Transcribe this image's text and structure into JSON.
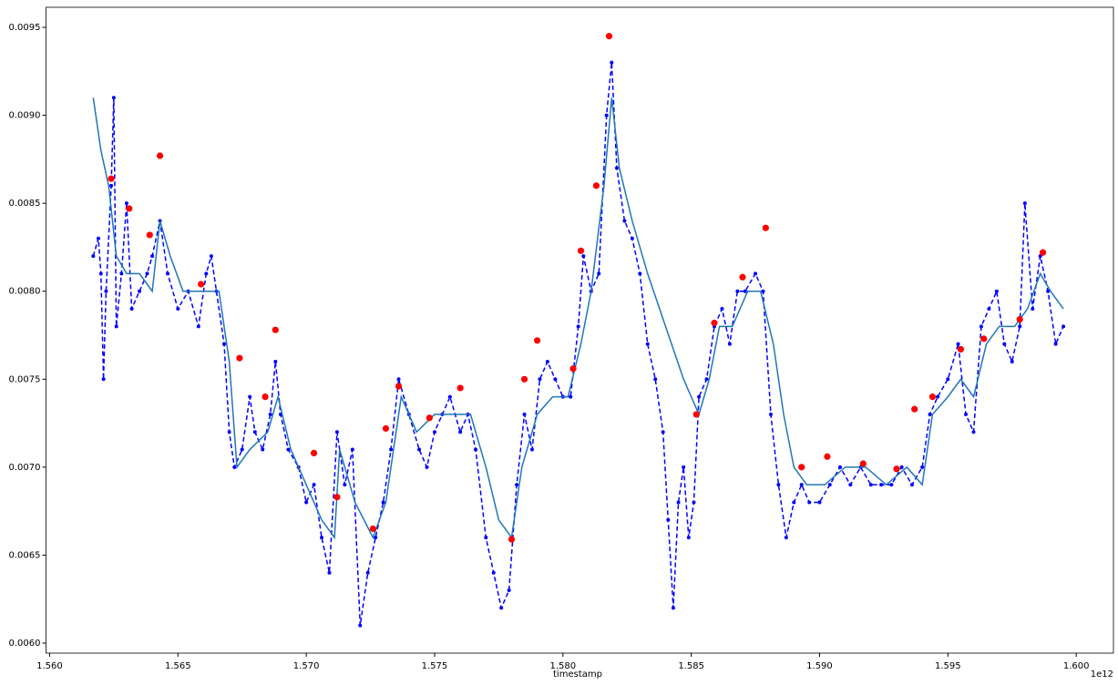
{
  "chart_data": {
    "type": "line",
    "x_label": "timestamp",
    "x_offset_label": "1e12",
    "xlim": [
      1.55986,
      1.60145
    ],
    "ylim": [
      0.005943,
      0.009614
    ],
    "xticks": [
      {
        "value": 1.56,
        "label": "1.560"
      },
      {
        "value": 1.565,
        "label": "1.565"
      },
      {
        "value": 1.57,
        "label": "1.570"
      },
      {
        "value": 1.575,
        "label": "1.575"
      },
      {
        "value": 1.58,
        "label": "1.580"
      },
      {
        "value": 1.585,
        "label": "1.585"
      },
      {
        "value": 1.59,
        "label": "1.590"
      },
      {
        "value": 1.595,
        "label": "1.595"
      },
      {
        "value": 1.6,
        "label": "1.600"
      }
    ],
    "yticks": [
      {
        "value": 0.006,
        "label": "0.0060"
      },
      0.0065,
      {
        "value": 0.007,
        "label": "0.0070"
      },
      0.0075,
      {
        "value": 0.008,
        "label": "0.0080"
      },
      0.0085,
      {
        "value": 0.009,
        "label": "0.0090"
      },
      0.0095
    ],
    "series": [
      {
        "color": "#0000ff",
        "line": "dashed",
        "marker": "dot",
        "x": [
          1.5617,
          1.5619,
          1.562,
          1.5621,
          1.5622,
          1.5624,
          1.5625,
          1.5626,
          1.5628,
          1.563,
          1.5632,
          1.5635,
          1.5638,
          1.564,
          1.5643,
          1.5646,
          1.565,
          1.5654,
          1.5658,
          1.5661,
          1.5663,
          1.5665,
          1.5668,
          1.567,
          1.5672,
          1.5675,
          1.5678,
          1.568,
          1.5683,
          1.5686,
          1.5688,
          1.569,
          1.5693,
          1.5697,
          1.57,
          1.5703,
          1.5706,
          1.5709,
          1.5712,
          1.5715,
          1.5718,
          1.5721,
          1.5724,
          1.5727,
          1.573,
          1.5733,
          1.5736,
          1.574,
          1.5744,
          1.5747,
          1.575,
          1.5753,
          1.5756,
          1.576,
          1.5763,
          1.5766,
          1.577,
          1.5773,
          1.5776,
          1.5779,
          1.5782,
          1.5785,
          1.5788,
          1.5791,
          1.5794,
          1.5797,
          1.58,
          1.5803,
          1.5806,
          1.5808,
          1.5811,
          1.5814,
          1.5817,
          1.5819,
          1.5821,
          1.5824,
          1.5827,
          1.583,
          1.5833,
          1.5836,
          1.5839,
          1.5841,
          1.5843,
          1.5845,
          1.5847,
          1.5849,
          1.5851,
          1.5853,
          1.5856,
          1.5859,
          1.5862,
          1.5865,
          1.5868,
          1.5871,
          1.5875,
          1.5878,
          1.5881,
          1.5884,
          1.5887,
          1.589,
          1.5893,
          1.5896,
          1.59,
          1.5904,
          1.5908,
          1.5912,
          1.5916,
          1.592,
          1.5924,
          1.5928,
          1.5932,
          1.5936,
          1.594,
          1.5943,
          1.5946,
          1.595,
          1.5954,
          1.5957,
          1.596,
          1.5963,
          1.5966,
          1.5969,
          1.5972,
          1.5975,
          1.5978,
          1.598,
          1.5983,
          1.5986,
          1.5989,
          1.5992,
          1.5995
        ],
        "values": [
          0.0082,
          0.0083,
          0.0081,
          0.0075,
          0.008,
          0.0086,
          0.0091,
          0.0078,
          0.0081,
          0.0085,
          0.0079,
          0.008,
          0.0081,
          0.0082,
          0.0084,
          0.0081,
          0.0079,
          0.008,
          0.0078,
          0.0081,
          0.0082,
          0.008,
          0.0077,
          0.0072,
          0.007,
          0.0071,
          0.0074,
          0.0072,
          0.0071,
          0.0073,
          0.0076,
          0.0073,
          0.0071,
          0.007,
          0.0068,
          0.0069,
          0.0066,
          0.0064,
          0.0072,
          0.0069,
          0.0071,
          0.0061,
          0.0064,
          0.0066,
          0.0068,
          0.0071,
          0.0075,
          0.0073,
          0.0071,
          0.007,
          0.0072,
          0.0073,
          0.0074,
          0.0072,
          0.0073,
          0.0071,
          0.0066,
          0.0064,
          0.0062,
          0.0063,
          0.0069,
          0.0073,
          0.0071,
          0.0075,
          0.0076,
          0.0075,
          0.0074,
          0.0074,
          0.0078,
          0.0082,
          0.008,
          0.0081,
          0.009,
          0.0093,
          0.0087,
          0.0084,
          0.0083,
          0.0081,
          0.0077,
          0.0075,
          0.0072,
          0.0067,
          0.0062,
          0.0068,
          0.007,
          0.0066,
          0.0068,
          0.0074,
          0.0075,
          0.0078,
          0.0079,
          0.0077,
          0.008,
          0.008,
          0.0081,
          0.008,
          0.0073,
          0.0069,
          0.0066,
          0.0068,
          0.0069,
          0.0068,
          0.0068,
          0.0069,
          0.007,
          0.0069,
          0.007,
          0.0069,
          0.0069,
          0.0069,
          0.007,
          0.0069,
          0.007,
          0.0073,
          0.0074,
          0.0075,
          0.0077,
          0.0073,
          0.0072,
          0.0078,
          0.0079,
          0.008,
          0.0077,
          0.0076,
          0.0078,
          0.0085,
          0.0079,
          0.0082,
          0.008,
          0.0077,
          0.0078
        ]
      },
      {
        "color": "#1f77b4",
        "line": "solid",
        "marker": "none",
        "x": [
          1.5617,
          1.562,
          1.5623,
          1.5626,
          1.563,
          1.5635,
          1.564,
          1.5643,
          1.5647,
          1.5652,
          1.5657,
          1.5662,
          1.5666,
          1.567,
          1.5673,
          1.5678,
          1.5685,
          1.5689,
          1.5694,
          1.57,
          1.5706,
          1.5711,
          1.5713,
          1.5719,
          1.5726,
          1.5731,
          1.5737,
          1.5743,
          1.575,
          1.5758,
          1.5764,
          1.577,
          1.5775,
          1.578,
          1.5784,
          1.579,
          1.5796,
          1.5802,
          1.5807,
          1.5811,
          1.5816,
          1.5819,
          1.5822,
          1.5827,
          1.5833,
          1.584,
          1.5847,
          1.5853,
          1.5857,
          1.5861,
          1.5866,
          1.5872,
          1.5877,
          1.5882,
          1.5886,
          1.589,
          1.5895,
          1.5902,
          1.591,
          1.5918,
          1.5926,
          1.5934,
          1.594,
          1.5944,
          1.595,
          1.5955,
          1.596,
          1.5965,
          1.597,
          1.5976,
          1.5981,
          1.5986,
          1.599,
          1.5995
        ],
        "values": [
          0.0091,
          0.0088,
          0.0086,
          0.0082,
          0.0081,
          0.0081,
          0.008,
          0.0084,
          0.0082,
          0.008,
          0.008,
          0.008,
          0.008,
          0.0076,
          0.007,
          0.0071,
          0.0072,
          0.0074,
          0.0071,
          0.0069,
          0.0067,
          0.0066,
          0.0071,
          0.0068,
          0.0066,
          0.0068,
          0.0074,
          0.0072,
          0.0073,
          0.0073,
          0.0073,
          0.007,
          0.0067,
          0.0066,
          0.007,
          0.0073,
          0.0074,
          0.0074,
          0.0077,
          0.008,
          0.0086,
          0.0091,
          0.0087,
          0.0084,
          0.0081,
          0.0078,
          0.0075,
          0.0073,
          0.0075,
          0.0078,
          0.0078,
          0.008,
          0.008,
          0.0077,
          0.0073,
          0.007,
          0.0069,
          0.0069,
          0.007,
          0.007,
          0.0069,
          0.007,
          0.0069,
          0.0073,
          0.0074,
          0.0075,
          0.0074,
          0.0077,
          0.0078,
          0.0078,
          0.0079,
          0.0081,
          0.008,
          0.0079
        ]
      },
      {
        "color": "#ff0000",
        "line": "none",
        "marker": "circle",
        "x": [
          1.5624,
          1.5631,
          1.5639,
          1.5643,
          1.5659,
          1.5674,
          1.5684,
          1.5688,
          1.5703,
          1.5712,
          1.5726,
          1.5731,
          1.5736,
          1.5748,
          1.576,
          1.578,
          1.5785,
          1.579,
          1.5804,
          1.5807,
          1.5813,
          1.5818,
          1.5852,
          1.5859,
          1.587,
          1.5879,
          1.5893,
          1.5903,
          1.5917,
          1.593,
          1.5937,
          1.5944,
          1.5955,
          1.5964,
          1.5978,
          1.5987
        ],
        "values": [
          0.00864,
          0.00847,
          0.00832,
          0.00877,
          0.00804,
          0.00762,
          0.0074,
          0.00778,
          0.00708,
          0.00683,
          0.00665,
          0.00722,
          0.00746,
          0.00728,
          0.00745,
          0.00659,
          0.0075,
          0.00772,
          0.00756,
          0.00823,
          0.0086,
          0.00945,
          0.0073,
          0.00782,
          0.00808,
          0.00836,
          0.007,
          0.00706,
          0.00702,
          0.00699,
          0.00733,
          0.0074,
          0.00767,
          0.00773,
          0.00784,
          0.00822
        ]
      }
    ]
  }
}
